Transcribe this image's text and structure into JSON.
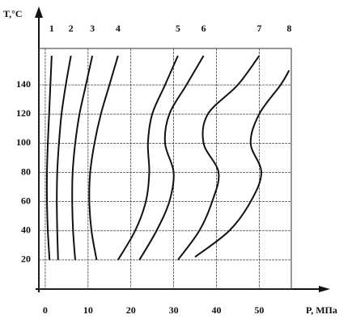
{
  "chart_data": {
    "type": "line",
    "y_label": "T,°C",
    "x_label": "P, МПа",
    "xlim": [
      -1.5,
      57.5
    ],
    "xticks": [
      0,
      10,
      20,
      30,
      40,
      50
    ],
    "ylim": [
      0,
      165
    ],
    "yticks": [
      20,
      40,
      60,
      80,
      100,
      120,
      140
    ],
    "grid": true,
    "color": "#111",
    "series": [
      {
        "name": "1",
        "x": [
          1,
          0.6,
          0.4,
          0.4,
          0.6,
          0.9,
          1.2,
          1.5
        ],
        "values": [
          20,
          40,
          60,
          80,
          100,
          120,
          140,
          160
        ]
      },
      {
        "name": "2",
        "x": [
          3,
          2.8,
          2.7,
          2.8,
          3.2,
          3.8,
          4.8,
          6
        ],
        "values": [
          20,
          40,
          60,
          80,
          100,
          120,
          140,
          160
        ]
      },
      {
        "name": "3",
        "x": [
          7,
          6.5,
          6.3,
          6.4,
          7,
          8,
          9.5,
          11
        ],
        "values": [
          20,
          40,
          60,
          80,
          100,
          120,
          140,
          160
        ]
      },
      {
        "name": "4",
        "x": [
          12,
          10.8,
          10.3,
          10.5,
          11.5,
          13,
          15,
          17
        ],
        "values": [
          20,
          40,
          60,
          80,
          100,
          120,
          140,
          160
        ]
      },
      {
        "name": "5",
        "x": [
          17,
          21,
          23.5,
          24.3,
          24,
          25,
          28,
          31
        ],
        "values": [
          20,
          40,
          60,
          80,
          100,
          120,
          140,
          160
        ]
      },
      {
        "name": "6",
        "x": [
          22,
          26,
          29,
          30,
          28,
          29,
          33,
          37
        ],
        "values": [
          20,
          40,
          60,
          80,
          100,
          120,
          140,
          160
        ]
      },
      {
        "name": "7",
        "x": [
          31,
          36,
          39,
          40.5,
          37,
          38,
          45,
          50
        ],
        "values": [
          20,
          40,
          60,
          80,
          100,
          120,
          140,
          160
        ]
      },
      {
        "name": "8",
        "x": [
          35,
          43,
          48,
          50.5,
          48,
          50,
          55,
          57
        ],
        "values": [
          22,
          40,
          60,
          80,
          100,
          120,
          140,
          150
        ]
      }
    ]
  }
}
